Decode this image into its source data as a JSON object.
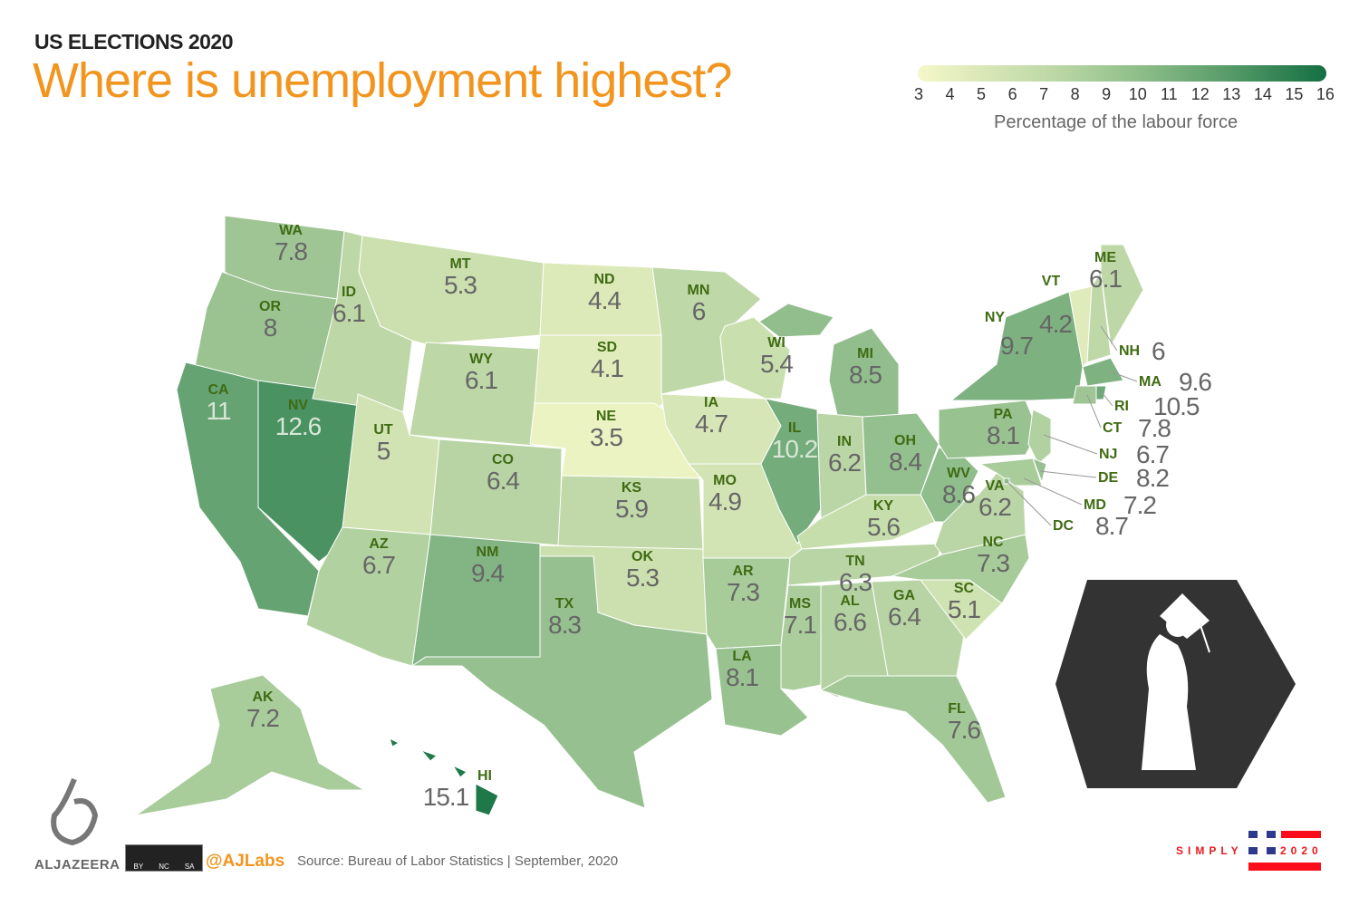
{
  "header": {
    "kicker": "US ELECTIONS 2020",
    "title": "Where is unemployment highest?"
  },
  "legend": {
    "ticks": [
      "3",
      "4",
      "5",
      "6",
      "7",
      "8",
      "9",
      "10",
      "11",
      "12",
      "13",
      "14",
      "15",
      "16"
    ],
    "caption": "Percentage of the labour force",
    "range": [
      3,
      16
    ],
    "colors": {
      "low": "#f5f8c8",
      "high": "#0e6e3e"
    }
  },
  "states": [
    {
      "abbr": "WA",
      "value": "7.8"
    },
    {
      "abbr": "OR",
      "value": "8"
    },
    {
      "abbr": "CA",
      "value": "11"
    },
    {
      "abbr": "NV",
      "value": "12.6"
    },
    {
      "abbr": "ID",
      "value": "6.1"
    },
    {
      "abbr": "MT",
      "value": "5.3"
    },
    {
      "abbr": "WY",
      "value": "6.1"
    },
    {
      "abbr": "UT",
      "value": "5"
    },
    {
      "abbr": "CO",
      "value": "6.4"
    },
    {
      "abbr": "AZ",
      "value": "6.7"
    },
    {
      "abbr": "NM",
      "value": "9.4"
    },
    {
      "abbr": "ND",
      "value": "4.4"
    },
    {
      "abbr": "SD",
      "value": "4.1"
    },
    {
      "abbr": "NE",
      "value": "3.5"
    },
    {
      "abbr": "KS",
      "value": "5.9"
    },
    {
      "abbr": "OK",
      "value": "5.3"
    },
    {
      "abbr": "TX",
      "value": "8.3"
    },
    {
      "abbr": "MN",
      "value": "6"
    },
    {
      "abbr": "IA",
      "value": "4.7"
    },
    {
      "abbr": "MO",
      "value": "4.9"
    },
    {
      "abbr": "AR",
      "value": "7.3"
    },
    {
      "abbr": "LA",
      "value": "8.1"
    },
    {
      "abbr": "WI",
      "value": "5.4"
    },
    {
      "abbr": "IL",
      "value": "10.2"
    },
    {
      "abbr": "MI",
      "value": "8.5"
    },
    {
      "abbr": "IN",
      "value": "6.2"
    },
    {
      "abbr": "OH",
      "value": "8.4"
    },
    {
      "abbr": "KY",
      "value": "5.6"
    },
    {
      "abbr": "TN",
      "value": "6.3"
    },
    {
      "abbr": "MS",
      "value": "7.1"
    },
    {
      "abbr": "AL",
      "value": "6.6"
    },
    {
      "abbr": "GA",
      "value": "6.4"
    },
    {
      "abbr": "FL",
      "value": "7.6"
    },
    {
      "abbr": "SC",
      "value": "5.1"
    },
    {
      "abbr": "NC",
      "value": "7.3"
    },
    {
      "abbr": "VA",
      "value": "6.2"
    },
    {
      "abbr": "WV",
      "value": "8.6"
    },
    {
      "abbr": "PA",
      "value": "8.1"
    },
    {
      "abbr": "NY",
      "value": "9.7"
    },
    {
      "abbr": "VT",
      "value": "4.2"
    },
    {
      "abbr": "NH",
      "value": "6"
    },
    {
      "abbr": "ME",
      "value": "6.1"
    },
    {
      "abbr": "MA",
      "value": "9.6"
    },
    {
      "abbr": "RI",
      "value": "10.5"
    },
    {
      "abbr": "CT",
      "value": "7.8"
    },
    {
      "abbr": "NJ",
      "value": "6.7"
    },
    {
      "abbr": "DE",
      "value": "8.2"
    },
    {
      "abbr": "MD",
      "value": "7.2"
    },
    {
      "abbr": "DC",
      "value": "8.7"
    },
    {
      "abbr": "AK",
      "value": "7.2"
    },
    {
      "abbr": "HI",
      "value": "15.1"
    }
  ],
  "footer": {
    "brand": "ALJAZEERA",
    "license": [
      "BY",
      "NC",
      "SA"
    ],
    "handle": "@AJLabs",
    "source": "Source: Bureau of Labor Statistics | September, 2020",
    "series_left": "SIMPLY",
    "series_right": "2020"
  }
}
